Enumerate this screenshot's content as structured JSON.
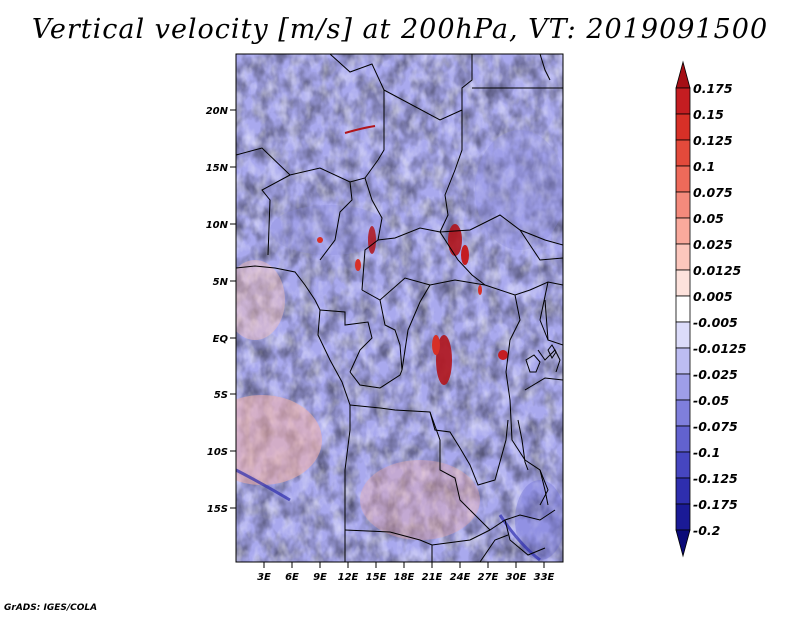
{
  "title": "Vertical velocity [m/s] at 200hPa, VT: 2019091500",
  "footer": "GrADS: IGES/COLA",
  "map": {
    "lat_labels": [
      "20N",
      "15N",
      "10N",
      "5N",
      "EQ",
      "5S",
      "10S",
      "15S"
    ],
    "lon_labels": [
      "3E",
      "6E",
      "9E",
      "12E",
      "15E",
      "18E",
      "21E",
      "24E",
      "27E",
      "30E",
      "33E"
    ]
  },
  "colorbar": {
    "levels": [
      "0.175",
      "0.15",
      "0.125",
      "0.1",
      "0.075",
      "0.05",
      "0.025",
      "0.0125",
      "0.005",
      "-0.005",
      "-0.0125",
      "-0.025",
      "-0.05",
      "-0.075",
      "-0.1",
      "-0.125",
      "-0.175",
      "-0.2"
    ],
    "colors": [
      "#a50f15",
      "#c41d21",
      "#d73027",
      "#e34a3b",
      "#ee6a5a",
      "#f48a7c",
      "#f9a99c",
      "#fcc7bd",
      "#fde2dc",
      "#ffffff",
      "#dcdcfa",
      "#bdbdf2",
      "#9e9ee8",
      "#7f7fdc",
      "#6262cf",
      "#4646c0",
      "#2e2eae",
      "#1a1a96",
      "#0a0a78"
    ]
  },
  "colors": {
    "positive": "#d73027",
    "negative": "#4646c0",
    "border": "#000000"
  }
}
